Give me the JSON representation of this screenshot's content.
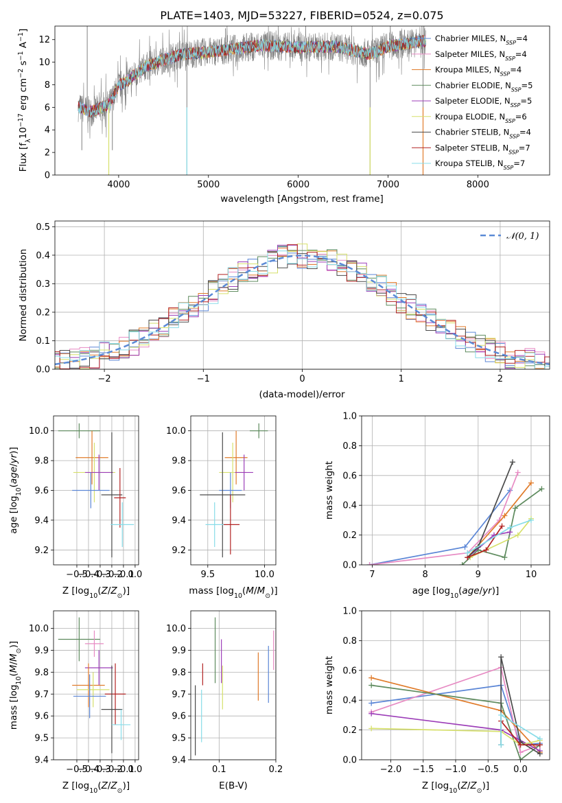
{
  "figure_title": "PLATE=1403, MJD=53227, FIBERID=0524, z=0.075",
  "colors": {
    "Chabrier MILES": "#5b86d6",
    "Salpeter MILES": "#e78ac3",
    "Kroupa MILES": "#e07b2a",
    "Chabrier ELODIE": "#5d8a5d",
    "Salpeter ELODIE": "#9c3db8",
    "Kroupa ELODIE": "#d6e06a",
    "Chabrier STELIB": "#4a4a4a",
    "Salpeter STELIB": "#b22222",
    "Kroupa STELIB": "#87dce8",
    "data": "#808080",
    "gaussian": "#5b8ad6"
  },
  "chart_data": [
    {
      "id": "spectrum",
      "type": "line",
      "xlabel": "wavelength [Angstrom, rest frame]",
      "ylabel": "Flux [f_λ10^-17 erg cm^-2 s^-1 A^-1]",
      "xlim": [
        3290,
        8800
      ],
      "ylim": [
        0,
        13.2
      ],
      "xticks": [
        4000,
        5000,
        6000,
        7000,
        8000
      ],
      "yticks": [
        0,
        2,
        4,
        6,
        8,
        10,
        12
      ],
      "grid": false,
      "legend_position": "right",
      "legend": [
        {
          "name": "Chabrier MILES",
          "nssp": "4"
        },
        {
          "name": "Salpeter MILES",
          "nssp": "4"
        },
        {
          "name": "Kroupa MILES",
          "nssp": "4"
        },
        {
          "name": "Chabrier ELODIE",
          "nssp": "5"
        },
        {
          "name": "Salpeter ELODIE",
          "nssp": "5"
        },
        {
          "name": "Kroupa ELODIE",
          "nssp": "6"
        },
        {
          "name": "Chabrier STELIB",
          "nssp": "4"
        },
        {
          "name": "Salpeter STELIB",
          "nssp": "7"
        },
        {
          "name": "Kroupa STELIB",
          "nssp": "7"
        }
      ],
      "continuum": {
        "x": [
          3550,
          3700,
          3900,
          4000,
          4100,
          4300,
          4500,
          4700,
          5000,
          5300,
          5600,
          6000,
          6400,
          6800,
          7000,
          7300,
          7420
        ],
        "y": [
          6.0,
          5.6,
          6.3,
          7.9,
          8.4,
          9.6,
          10.2,
          10.7,
          10.9,
          11.2,
          11.5,
          11.3,
          11.4,
          10.7,
          11.4,
          11.8,
          11.9
        ]
      },
      "spikes": [
        {
          "x": 3590,
          "y": 2.2
        },
        {
          "x": 3650,
          "y": 13.2
        },
        {
          "x": 3890,
          "y": 0
        },
        {
          "x": 3930,
          "y": 2.2
        },
        {
          "x": 4760,
          "y": 0
        },
        {
          "x": 5190,
          "y": 13.0
        },
        {
          "x": 6800,
          "y": 0
        },
        {
          "x": 7390,
          "y": 0
        }
      ]
    },
    {
      "id": "residual-hist",
      "type": "line",
      "xlabel": "(data-model)/error",
      "ylabel": "Normed distribution",
      "xlim": [
        -2.5,
        2.5
      ],
      "ylim": [
        0,
        0.52
      ],
      "xticks": [
        -2,
        -1,
        0,
        1,
        2
      ],
      "yticks": [
        0.0,
        0.1,
        0.2,
        0.3,
        0.4,
        0.5
      ],
      "grid": true,
      "legend": [
        "N(0,1)"
      ],
      "legend_position": "upper right",
      "bin_width": 0.1
    },
    {
      "id": "age-vs-Z",
      "type": "scatter",
      "xlabel": "Z [log10(Z/Z⊙)]",
      "ylabel": "age [log10(age/yr)]",
      "xlim": [
        -0.7,
        0.03
      ],
      "ylim": [
        9.1,
        10.1
      ],
      "xticks": [
        -0.5,
        -0.4,
        -0.3,
        -0.2,
        -0.1,
        0.0
      ],
      "yticks": [
        9.2,
        9.4,
        9.6,
        9.8,
        10.0
      ],
      "grid": true,
      "points": [
        {
          "series": "Chabrier ELODIE",
          "x": -0.48,
          "y": 10.0,
          "xerr": 0.18,
          "yerr": 0.05
        },
        {
          "series": "Kroupa MILES",
          "x": -0.37,
          "y": 9.82,
          "xerr": 0.14,
          "yerr": 0.18
        },
        {
          "series": "Kroupa ELODIE",
          "x": -0.35,
          "y": 9.72,
          "xerr": 0.18,
          "yerr": 0.2
        },
        {
          "series": "Salpeter ELODIE",
          "x": -0.31,
          "y": 9.72,
          "xerr": 0.12,
          "yerr": 0.12
        },
        {
          "series": "Chabrier MILES",
          "x": -0.38,
          "y": 9.6,
          "xerr": 0.16,
          "yerr": 0.12
        },
        {
          "series": "Chabrier STELIB",
          "x": -0.2,
          "y": 9.57,
          "xerr": 0.09,
          "yerr": 0.42
        },
        {
          "series": "Salpeter STELIB",
          "x": -0.13,
          "y": 9.55,
          "xerr": 0.05,
          "yerr": 0.2
        },
        {
          "series": "Kroupa STELIB",
          "x": -0.11,
          "y": 9.37,
          "xerr": 0.1,
          "yerr": 0.15
        }
      ]
    },
    {
      "id": "age-vs-mass",
      "type": "scatter",
      "xlabel": "mass [log10(M/M⊙)]",
      "ylabel": "",
      "xlim": [
        9.35,
        10.1
      ],
      "ylim": [
        9.1,
        10.1
      ],
      "xticks": [
        9.5,
        10.0
      ],
      "yticks": [
        9.2,
        9.4,
        9.6,
        9.8,
        10.0
      ],
      "grid": true,
      "points": [
        {
          "series": "Chabrier ELODIE",
          "x": 9.95,
          "y": 10.0,
          "xerr": 0.08,
          "yerr": 0.05
        },
        {
          "series": "Kroupa MILES",
          "x": 9.75,
          "y": 9.82,
          "xerr": 0.1,
          "yerr": 0.18
        },
        {
          "series": "Kroupa ELODIE",
          "x": 9.72,
          "y": 9.72,
          "xerr": 0.12,
          "yerr": 0.2
        },
        {
          "series": "Salpeter ELODIE",
          "x": 9.82,
          "y": 9.72,
          "xerr": 0.08,
          "yerr": 0.12
        },
        {
          "series": "Chabrier MILES",
          "x": 9.7,
          "y": 9.6,
          "xerr": 0.1,
          "yerr": 0.12
        },
        {
          "series": "Chabrier STELIB",
          "x": 9.63,
          "y": 9.57,
          "xerr": 0.2,
          "yerr": 0.42
        },
        {
          "series": "Salpeter STELIB",
          "x": 9.7,
          "y": 9.37,
          "xerr": 0.08,
          "yerr": 0.2
        },
        {
          "series": "Kroupa STELIB",
          "x": 9.56,
          "y": 9.37,
          "xerr": 0.08,
          "yerr": 0.15
        }
      ]
    },
    {
      "id": "weight-vs-age",
      "type": "line",
      "xlabel": "age [log10(age/yr)]",
      "ylabel": "mass weight",
      "xlim": [
        6.8,
        10.35
      ],
      "ylim": [
        0,
        1.0
      ],
      "xticks": [
        7,
        8,
        9,
        10
      ],
      "yticks": [
        0.0,
        0.2,
        0.4,
        0.6,
        0.8,
        1.0
      ],
      "grid": true,
      "series": [
        {
          "name": "Chabrier MILES",
          "x": [
            6.95,
            8.75,
            9.6
          ],
          "y": [
            0.0,
            0.12,
            0.5
          ]
        },
        {
          "name": "Salpeter MILES",
          "x": [
            6.95,
            8.8,
            9.4,
            9.75
          ],
          "y": [
            0.0,
            0.08,
            0.3,
            0.62
          ]
        },
        {
          "name": "Kroupa MILES",
          "x": [
            8.8,
            9.5,
            10.0
          ],
          "y": [
            0.05,
            0.33,
            0.55
          ]
        },
        {
          "name": "Chabrier ELODIE",
          "x": [
            8.7,
            9.0,
            9.5,
            9.7,
            10.2
          ],
          "y": [
            0.0,
            0.1,
            0.05,
            0.38,
            0.51
          ]
        },
        {
          "name": "Salpeter ELODIE",
          "x": [
            8.8,
            9.3,
            9.6
          ],
          "y": [
            0.05,
            0.2,
            0.22
          ]
        },
        {
          "name": "Kroupa ELODIE",
          "x": [
            8.85,
            9.75,
            10.0
          ],
          "y": [
            0.05,
            0.2,
            0.31
          ]
        },
        {
          "name": "Chabrier STELIB",
          "x": [
            8.8,
            9.0,
            9.65
          ],
          "y": [
            0.05,
            0.12,
            0.69
          ]
        },
        {
          "name": "Salpeter STELIB",
          "x": [
            8.8,
            9.15,
            9.45
          ],
          "y": [
            0.05,
            0.1,
            0.26
          ]
        },
        {
          "name": "Kroupa STELIB",
          "x": [
            8.8,
            9.6,
            10.0
          ],
          "y": [
            0.08,
            0.25,
            0.3
          ]
        }
      ]
    },
    {
      "id": "mass-vs-Z",
      "type": "scatter",
      "xlabel": "Z [log10(Z/Z⊙)]",
      "ylabel": "mass [log10(M/M⊙)]",
      "xlim": [
        -0.7,
        0.03
      ],
      "ylim": [
        9.4,
        10.08
      ],
      "xticks": [
        -0.5,
        -0.4,
        -0.3,
        -0.2,
        -0.1,
        0.0
      ],
      "yticks": [
        9.4,
        9.5,
        9.6,
        9.7,
        9.8,
        9.9,
        10.0
      ],
      "grid": true,
      "points": [
        {
          "series": "Chabrier ELODIE",
          "x": -0.48,
          "y": 9.95,
          "xerr": 0.18,
          "yerr": 0.1
        },
        {
          "series": "Salpeter MILES",
          "x": -0.35,
          "y": 9.93,
          "xerr": 0.08,
          "yerr": 0.06
        },
        {
          "series": "Salpeter ELODIE",
          "x": -0.31,
          "y": 9.82,
          "xerr": 0.12,
          "yerr": 0.08
        },
        {
          "series": "Kroupa MILES",
          "x": -0.4,
          "y": 9.74,
          "xerr": 0.14,
          "yerr": 0.1
        },
        {
          "series": "Kroupa ELODIE",
          "x": -0.36,
          "y": 9.72,
          "xerr": 0.14,
          "yerr": 0.08
        },
        {
          "series": "Chabrier MILES",
          "x": -0.39,
          "y": 9.69,
          "xerr": 0.14,
          "yerr": 0.1
        },
        {
          "series": "Salpeter STELIB",
          "x": -0.17,
          "y": 9.7,
          "xerr": 0.09,
          "yerr": 0.14
        },
        {
          "series": "Chabrier STELIB",
          "x": -0.2,
          "y": 9.63,
          "xerr": 0.09,
          "yerr": 0.2
        },
        {
          "series": "Kroupa STELIB",
          "x": -0.12,
          "y": 9.56,
          "xerr": 0.08,
          "yerr": 0.07
        }
      ]
    },
    {
      "id": "mass-vs-ebv",
      "type": "scatter",
      "xlabel": "E(B-V)",
      "ylabel": "",
      "xlim": [
        0.05,
        0.2
      ],
      "ylim": [
        9.4,
        10.08
      ],
      "xticks": [
        0.1,
        0.2
      ],
      "yticks": [
        9.4,
        9.5,
        9.6,
        9.7,
        9.8,
        9.9,
        10.0
      ],
      "grid": true,
      "points": [
        {
          "series": "Chabrier STELIB",
          "x": 0.058,
          "y": 9.58,
          "xerr": 0,
          "yerr": 0.16
        },
        {
          "series": "Kroupa STELIB",
          "x": 0.069,
          "y": 9.6,
          "xerr": 0,
          "yerr": 0.12
        },
        {
          "series": "Salpeter STELIB",
          "x": 0.071,
          "y": 9.79,
          "xerr": 0,
          "yerr": 0.05
        },
        {
          "series": "Chabrier ELODIE",
          "x": 0.093,
          "y": 9.9,
          "xerr": 0,
          "yerr": 0.15
        },
        {
          "series": "Salpeter ELODIE",
          "x": 0.104,
          "y": 9.85,
          "xerr": 0,
          "yerr": 0.1
        },
        {
          "series": "Kroupa ELODIE",
          "x": 0.106,
          "y": 9.73,
          "xerr": 0,
          "yerr": 0.1
        },
        {
          "series": "Kroupa MILES",
          "x": 0.169,
          "y": 9.78,
          "xerr": 0,
          "yerr": 0.11
        },
        {
          "series": "Chabrier MILES",
          "x": 0.187,
          "y": 9.79,
          "xerr": 0,
          "yerr": 0.13
        },
        {
          "series": "Salpeter MILES",
          "x": 0.196,
          "y": 9.9,
          "xerr": 0,
          "yerr": 0.09
        }
      ]
    },
    {
      "id": "weight-vs-Z",
      "type": "line",
      "xlabel": "Z [log10(Z/Z⊙)]",
      "ylabel": "mass weight",
      "xlim": [
        -2.45,
        0.45
      ],
      "ylim": [
        0,
        1.0
      ],
      "xticks": [
        -2.0,
        -1.5,
        -1.0,
        -0.5,
        0.0
      ],
      "yticks": [
        0.0,
        0.2,
        0.4,
        0.6,
        0.8,
        1.0
      ],
      "grid": true,
      "series": [
        {
          "name": "Chabrier MILES",
          "x": [
            -2.3,
            -0.3,
            0.0,
            0.3
          ],
          "y": [
            0.38,
            0.5,
            0.1,
            0.11
          ]
        },
        {
          "name": "Salpeter MILES",
          "x": [
            -2.3,
            -0.3,
            0.0,
            0.3
          ],
          "y": [
            0.32,
            0.62,
            0.05,
            0.1
          ]
        },
        {
          "name": "Kroupa MILES",
          "x": [
            -2.3,
            -0.3,
            0.3
          ],
          "y": [
            0.55,
            0.33,
            0.05
          ]
        },
        {
          "name": "Chabrier ELODIE",
          "x": [
            -2.3,
            -0.3,
            0.0,
            0.3
          ],
          "y": [
            0.5,
            0.38,
            0.0,
            0.1
          ]
        },
        {
          "name": "Salpeter ELODIE",
          "x": [
            -2.3,
            -0.3,
            0.3
          ],
          "y": [
            0.31,
            0.2,
            0.06
          ]
        },
        {
          "name": "Kroupa ELODIE",
          "x": [
            -2.3,
            -0.3,
            0.0,
            0.3
          ],
          "y": [
            0.21,
            0.19,
            0.1,
            0.13
          ]
        },
        {
          "name": "Chabrier STELIB",
          "x": [
            -0.3,
            -0.3,
            0.0,
            0.3
          ],
          "y": [
            0.1,
            0.69,
            0.12,
            0.04
          ]
        },
        {
          "name": "Salpeter STELIB",
          "x": [
            -0.3,
            0.0,
            0.3
          ],
          "y": [
            0.26,
            0.1,
            0.1
          ]
        },
        {
          "name": "Kroupa STELIB",
          "x": [
            -0.3,
            -0.3,
            0.3
          ],
          "y": [
            0.1,
            0.3,
            0.14
          ]
        }
      ]
    }
  ]
}
